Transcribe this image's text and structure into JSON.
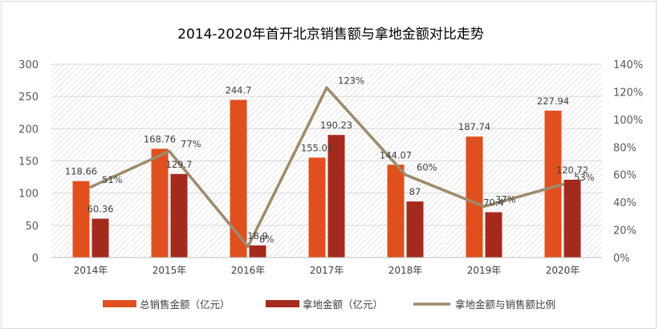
{
  "chart_data": {
    "type": "bar",
    "title": "2014-2020年首开北京销售额与拿地金额对比走势",
    "categories": [
      "2014年",
      "2015年",
      "2016年",
      "2017年",
      "2018年",
      "2019年",
      "2020年"
    ],
    "series": [
      {
        "name": "总销售金额（亿元）",
        "type": "bar",
        "axis": "left",
        "color": "#e0501e",
        "values": [
          118.66,
          168.76,
          244.7,
          155.01,
          144.07,
          187.74,
          227.94
        ],
        "labels": [
          "118.66",
          "168.76",
          "244.7",
          "155.01",
          "144.07",
          "187.74",
          "227.94"
        ]
      },
      {
        "name": "拿地金额（亿元）",
        "type": "bar",
        "axis": "left",
        "color": "#a52a1e",
        "values": [
          60.36,
          129.7,
          18.9,
          190.23,
          87,
          70.4,
          120.72
        ],
        "labels": [
          "60.36",
          "129.7",
          "18.9",
          "190.23",
          "87",
          "70.4",
          "120.72"
        ]
      },
      {
        "name": "拿地金额与销售额比例",
        "type": "line",
        "axis": "right",
        "color": "#9e8b6c",
        "values": [
          51,
          77,
          8,
          123,
          60,
          37,
          53
        ],
        "labels": [
          "51%",
          "77%",
          "8%",
          "123%",
          "60%",
          "37%",
          "53%"
        ]
      }
    ],
    "yleft": {
      "ticks": [
        "0",
        "50",
        "100",
        "150",
        "200",
        "250",
        "300"
      ],
      "range": [
        0,
        300
      ]
    },
    "yright": {
      "ticks": [
        "0%",
        "20%",
        "40%",
        "60%",
        "80%",
        "100%",
        "120%",
        "140%"
      ],
      "range": [
        0,
        140
      ]
    },
    "grid": true,
    "legend_position": "bottom"
  }
}
